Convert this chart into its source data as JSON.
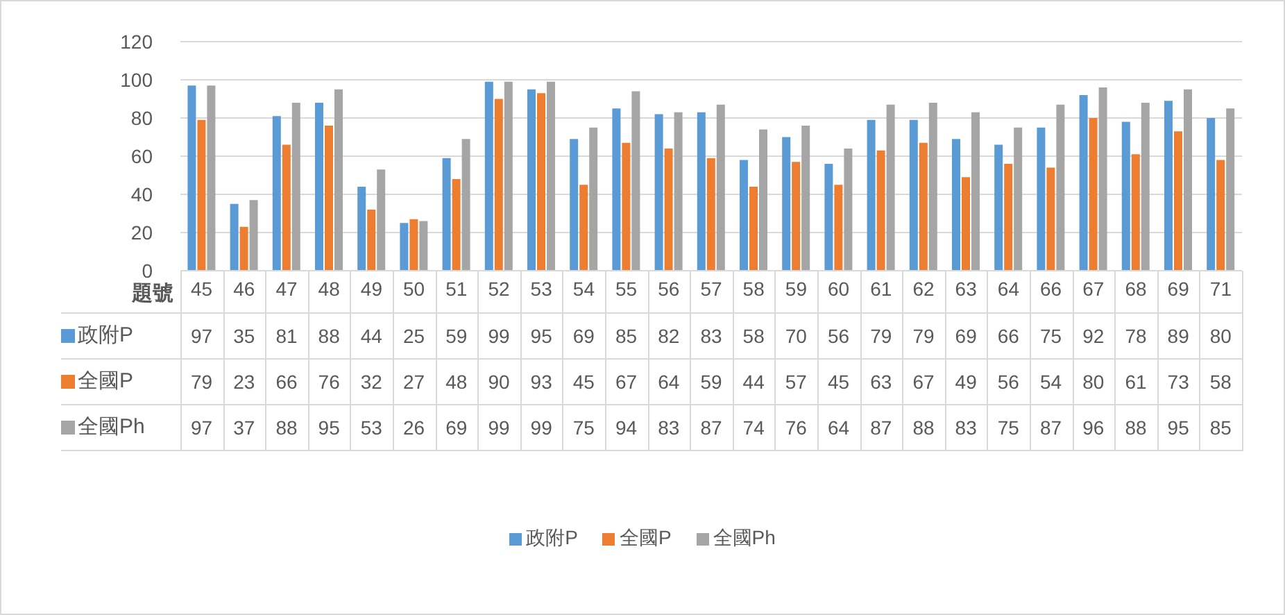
{
  "chart_data": {
    "type": "bar",
    "xlabel": "題號",
    "categories": [
      "45",
      "46",
      "47",
      "48",
      "49",
      "50",
      "51",
      "52",
      "53",
      "54",
      "55",
      "56",
      "57",
      "58",
      "59",
      "60",
      "61",
      "62",
      "63",
      "64",
      "66",
      "67",
      "68",
      "69",
      "71"
    ],
    "series": [
      {
        "name": "政附P",
        "color": "#5b9bd5",
        "values": [
          97,
          35,
          81,
          88,
          44,
          25,
          59,
          99,
          95,
          69,
          85,
          82,
          83,
          58,
          70,
          56,
          79,
          79,
          69,
          66,
          75,
          92,
          78,
          89,
          80
        ]
      },
      {
        "name": "全國P",
        "color": "#ed7d31",
        "values": [
          79,
          23,
          66,
          76,
          32,
          27,
          48,
          90,
          93,
          45,
          67,
          64,
          59,
          44,
          57,
          45,
          63,
          67,
          49,
          56,
          54,
          80,
          61,
          73,
          58
        ]
      },
      {
        "name": "全國Ph",
        "color": "#a5a5a5",
        "values": [
          97,
          37,
          88,
          95,
          53,
          26,
          69,
          99,
          99,
          75,
          94,
          83,
          87,
          74,
          76,
          64,
          87,
          88,
          83,
          75,
          87,
          96,
          88,
          95,
          85
        ]
      }
    ],
    "ylim": [
      0,
      120
    ],
    "yticks": [
      0,
      20,
      40,
      60,
      80,
      100,
      120
    ],
    "grid": "y",
    "legend": "bottom",
    "data_labels": true
  }
}
